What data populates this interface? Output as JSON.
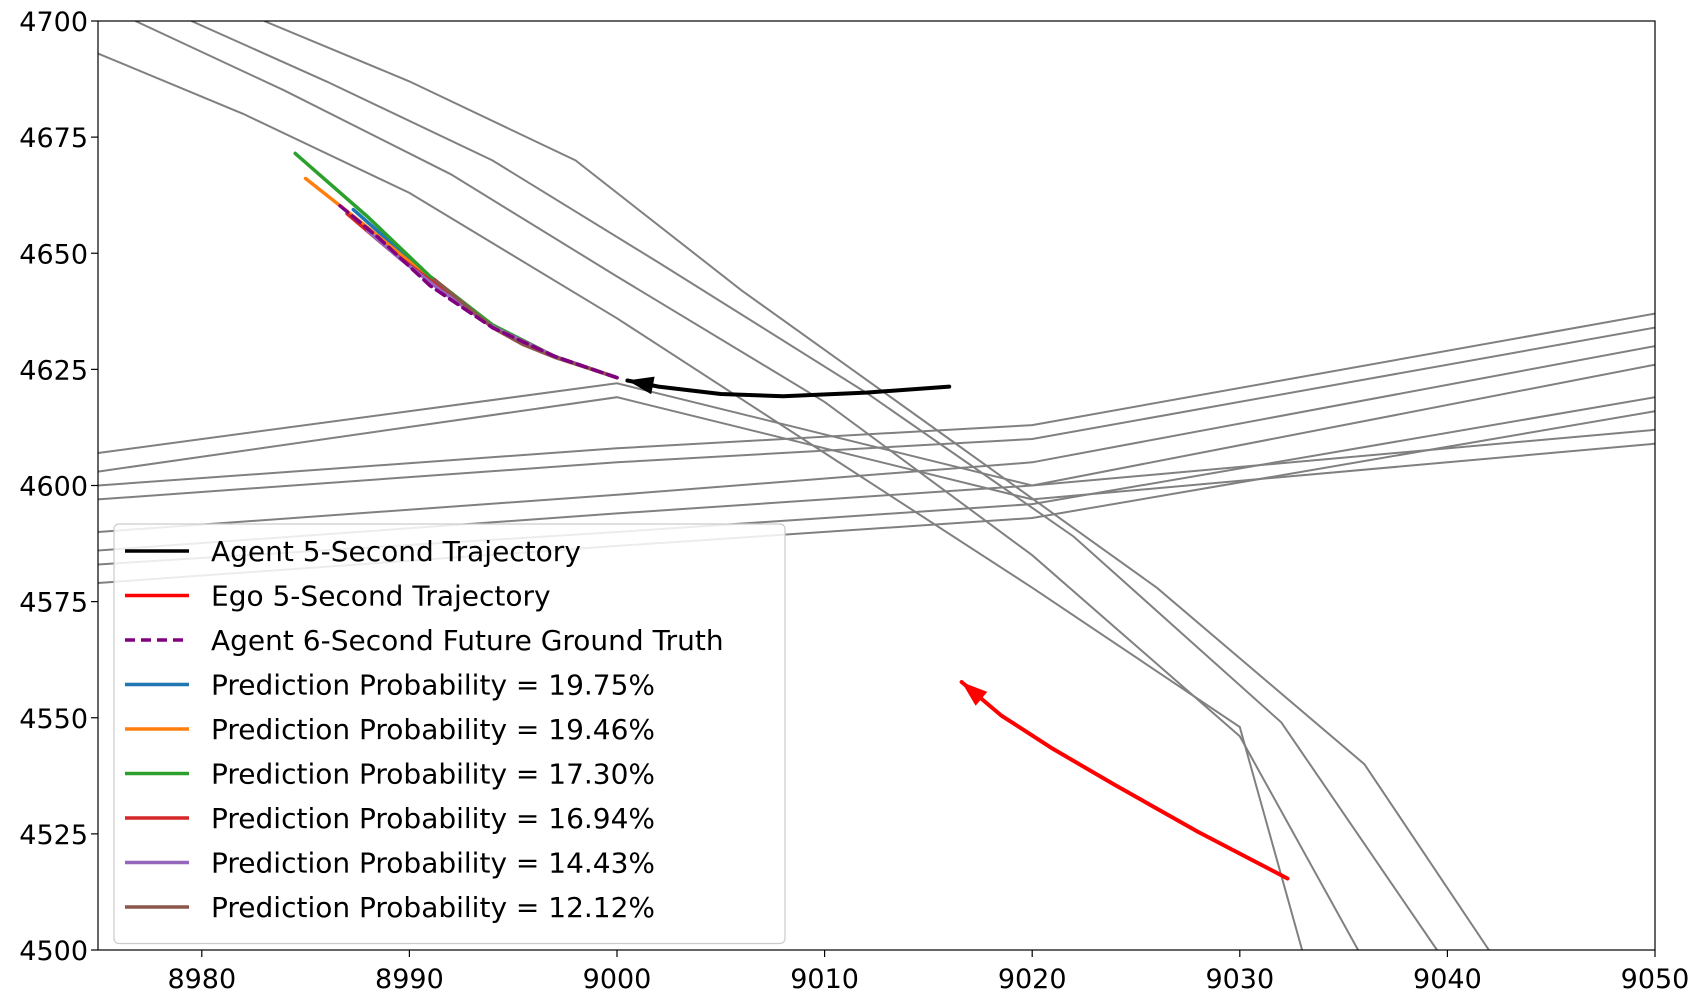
{
  "chart_data": {
    "type": "line",
    "title": "",
    "xlabel": "",
    "ylabel": "",
    "xlim": [
      8975,
      9050
    ],
    "ylim": [
      4500,
      4700
    ],
    "xticks": [
      8980,
      8990,
      9000,
      9010,
      9020,
      9030,
      9040,
      9050
    ],
    "yticks": [
      4500,
      4525,
      4550,
      4575,
      4600,
      4625,
      4650,
      4675,
      4700
    ],
    "grid": false,
    "legend_position": "lower-left",
    "series": [
      {
        "name": "Agent 5-Second Trajectory",
        "color": "#000000",
        "style": "solid",
        "x": [
          9016,
          9012,
          9008,
          9005,
          9002,
          9000.5
        ],
        "y": [
          4621.3,
          4620.0,
          4619.2,
          4619.7,
          4621.3,
          4622.6
        ]
      },
      {
        "name": "Ego 5-Second Trajectory",
        "color": "#ff0000",
        "style": "solid",
        "x": [
          9032.3,
          9028,
          9024,
          9021,
          9018.5,
          9016.6
        ],
        "y": [
          4515.4,
          4525.4,
          4535.5,
          4543.3,
          4550.5,
          4557.7
        ]
      },
      {
        "name": "Agent 6-Second Future Ground Truth",
        "color": "#800080",
        "style": "dashed",
        "x": [
          9000,
          8997,
          8994,
          8991,
          8988.5,
          8986.5
        ],
        "y": [
          4623.2,
          4627.8,
          4634.0,
          4643.0,
          4653.4,
          4660.8
        ]
      },
      {
        "name": "Prediction Probability =  19.75%",
        "color": "#1f77b4",
        "style": "solid",
        "x": [
          9000,
          8997,
          8994,
          8991,
          8989,
          8987.3
        ],
        "y": [
          4623.2,
          4627.8,
          4634.2,
          4644.0,
          4652.7,
          4659.4
        ]
      },
      {
        "name": "Prediction Probability =  19.46%",
        "color": "#ff7f0e",
        "style": "solid",
        "x": [
          9000,
          8997,
          8994,
          8991,
          8988,
          8985.0
        ],
        "y": [
          4623.2,
          4627.8,
          4634.2,
          4644.5,
          4655.5,
          4666.1
        ]
      },
      {
        "name": "Prediction Probability =  17.30%",
        "color": "#2ca02c",
        "style": "solid",
        "x": [
          9000,
          8997,
          8994,
          8991,
          8988,
          8984.5
        ],
        "y": [
          4623.2,
          4627.8,
          4634.6,
          4645.0,
          4657.8,
          4671.5
        ]
      },
      {
        "name": "Prediction Probability =  16.94%",
        "color": "#d62728",
        "style": "solid",
        "x": [
          9000,
          8997,
          8994,
          8991.5,
          8989,
          8987.0
        ],
        "y": [
          4623.2,
          4627.8,
          4634.2,
          4642.5,
          4650.9,
          4658.5
        ]
      },
      {
        "name": "Prediction Probability =  14.43%",
        "color": "#9467bd",
        "style": "solid",
        "x": [
          9000,
          8997,
          8994,
          8991.5,
          8989.5,
          8988.0
        ],
        "y": [
          4623.2,
          4627.8,
          4634.2,
          4642.0,
          4649.0,
          4654.8
        ]
      },
      {
        "name": "Prediction Probability =  12.12%",
        "color": "#8c564b",
        "style": "solid",
        "x": [
          9000,
          8998.5,
          8997,
          8995.5,
          8994,
          8991.2
        ],
        "y": [
          4623.2,
          4625.4,
          4627.6,
          4630.3,
          4634.0,
          4644.4
        ]
      }
    ],
    "map_lanes": {
      "color": "#808080",
      "lines": [
        {
          "x": [
            8975,
            8982,
            8990,
            9000,
            9010,
            9020,
            9030,
            9033
          ],
          "y": [
            4693,
            4680,
            4663,
            4636,
            4607,
            4578,
            4548,
            4500
          ]
        },
        {
          "x": [
            8976.8,
            8984,
            8992,
            9000,
            9010,
            9020,
            9030,
            9035.7
          ],
          "y": [
            4700,
            4685,
            4667,
            4645,
            4618,
            4585,
            4546,
            4500
          ]
        },
        {
          "x": [
            8979.5,
            8986,
            8994,
            9002,
            9012,
            9022,
            9032,
            9039.5
          ],
          "y": [
            4700,
            4687,
            4670,
            4648,
            4620,
            4589,
            4549,
            4500
          ]
        },
        {
          "x": [
            8983,
            8990,
            8998,
            9006,
            9016,
            9026,
            9036,
            9042
          ],
          "y": [
            4700,
            4687,
            4670,
            4642,
            4610,
            4578,
            4540,
            4500
          ]
        },
        {
          "x": [
            8975,
            9000,
            9020,
            9050
          ],
          "y": [
            4600,
            4608,
            4613,
            4637
          ]
        },
        {
          "x": [
            8975,
            9000,
            9020,
            9050
          ],
          "y": [
            4597,
            4605,
            4610,
            4634
          ]
        },
        {
          "x": [
            8975,
            9000,
            9020,
            9050
          ],
          "y": [
            4590,
            4598,
            4605,
            4630
          ]
        },
        {
          "x": [
            8975,
            9000,
            9020,
            9050
          ],
          "y": [
            4586,
            4594,
            4600,
            4626
          ]
        },
        {
          "x": [
            8975,
            9000,
            9020,
            9050
          ],
          "y": [
            4583,
            4590,
            4596,
            4619
          ]
        },
        {
          "x": [
            8975,
            9000,
            9020,
            9050
          ],
          "y": [
            4579,
            4587,
            4593,
            4616
          ]
        },
        {
          "x": [
            8975,
            9000,
            9020,
            9050
          ],
          "y": [
            4607,
            4622,
            4600,
            4612
          ]
        },
        {
          "x": [
            8975,
            9000,
            9020,
            9050
          ],
          "y": [
            4603,
            4619,
            4597,
            4609
          ]
        }
      ]
    }
  }
}
